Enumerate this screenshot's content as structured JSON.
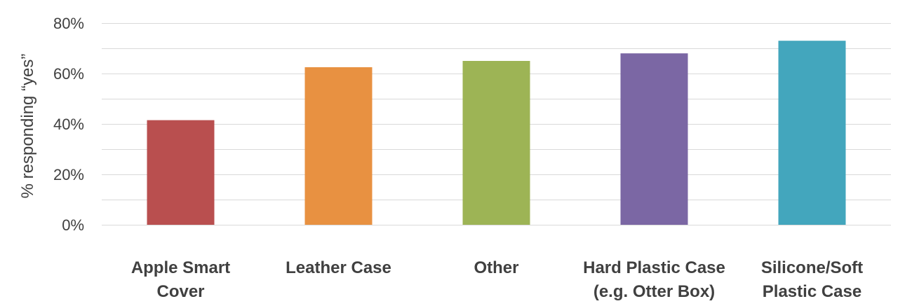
{
  "chart_data": {
    "type": "bar",
    "categories": [
      [
        "Apple Smart",
        "Cover"
      ],
      [
        "Leather Case"
      ],
      [
        "Other"
      ],
      [
        "Hard Plastic Case",
        "(e.g. Otter Box)"
      ],
      [
        "Silicone/Soft",
        "Plastic Case"
      ]
    ],
    "values": [
      41.5,
      62.5,
      65,
      68,
      73
    ],
    "colors": [
      "#b94f4f",
      "#e89141",
      "#9db455",
      "#7b67a4",
      "#43a6bd"
    ],
    "ylabel": "% responding “yes”",
    "xlabel": "",
    "ylim": [
      0,
      80
    ],
    "y_ticks": [
      "0%",
      "20%",
      "40%",
      "60%",
      "80%"
    ],
    "y_tick_values": [
      0,
      20,
      40,
      60,
      80
    ],
    "minor_gridlines": [
      10,
      30,
      50,
      70
    ],
    "grid": true,
    "legend": "none"
  }
}
